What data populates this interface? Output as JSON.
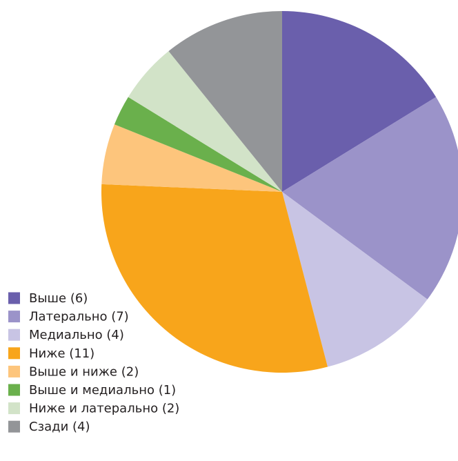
{
  "chart_data": {
    "type": "pie",
    "categories": [
      "Выше (6)",
      "Латерально (7)",
      "Медиально (4)",
      "Ниже (11)",
      "Выше и ниже (2)",
      "Выше и медиально (1)",
      "Ниже и латерально (2)",
      "Сзади (4)"
    ],
    "values": [
      6,
      7,
      4,
      11,
      2,
      1,
      2,
      4
    ],
    "colors": [
      "#6a5fac",
      "#9b93c9",
      "#c8c4e4",
      "#f8a51b",
      "#fdc57c",
      "#6ab04c",
      "#d2e3c8",
      "#939598"
    ],
    "legend": "lower left"
  }
}
